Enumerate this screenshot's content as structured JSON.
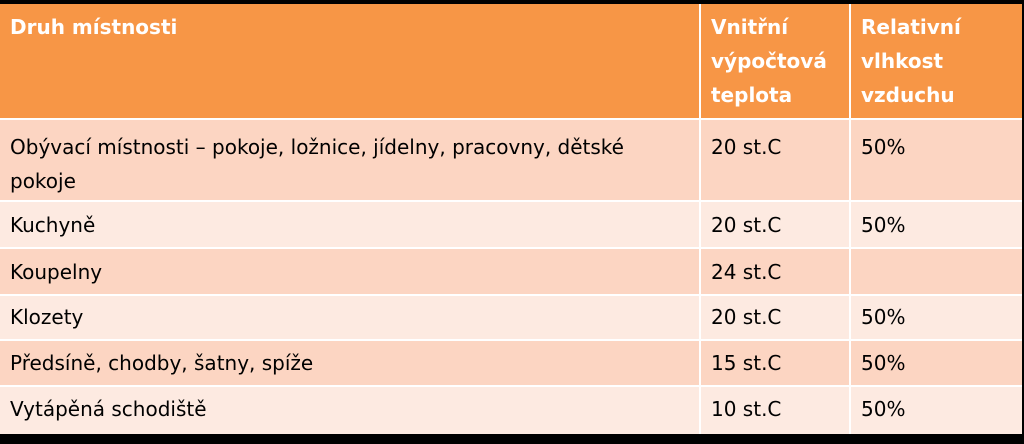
{
  "table": {
    "headers": [
      "Druh místnosti",
      "Vnitřní výpočtová teplota",
      "Relativní vlhkost vzduchu"
    ],
    "rows": [
      [
        "Obývací místnosti – pokoje, ložnice, jídelny, pracovny, dětské pokoje",
        "20 st.C",
        "50%"
      ],
      [
        "Kuchyně",
        "20 st.C",
        "50%"
      ],
      [
        "Koupelny",
        "24 st.C",
        ""
      ],
      [
        "Klozety",
        "20 st.C",
        "50%"
      ],
      [
        "Předsíně, chodby, šatny, spíže",
        "15 st.C",
        "50%"
      ],
      [
        "Vytápěná schodiště",
        "10 st.C",
        "50%"
      ]
    ]
  },
  "colors": {
    "header_bg": "#f79646",
    "row_dark": "#fcd5c2",
    "row_light": "#fdeae1",
    "page_bg": "#000000"
  }
}
